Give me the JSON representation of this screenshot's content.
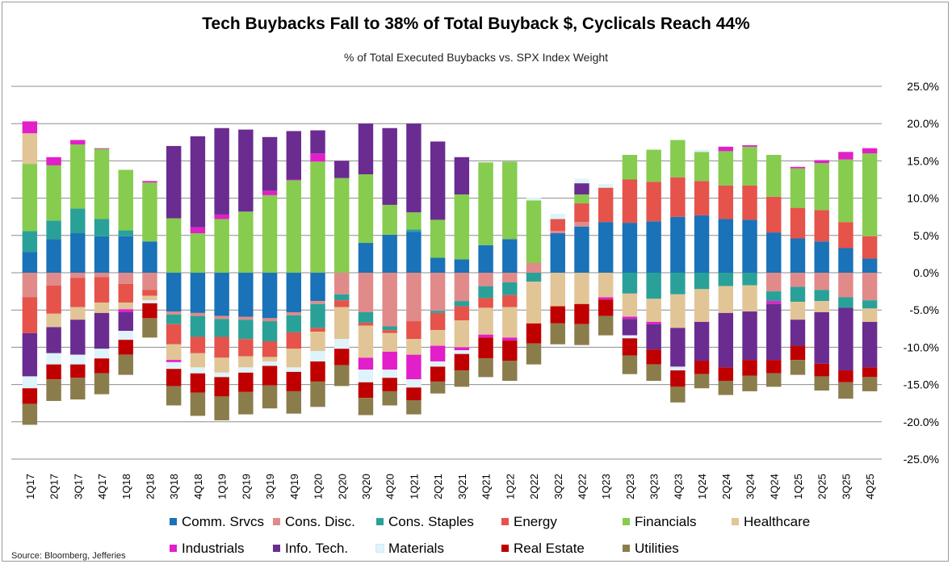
{
  "title": "Tech Buybacks Fall to 38% of Total Buyback $, Cyclicals Reach 44%",
  "subtitle": "% of Total Executed Buybacks vs. SPX Index Weight",
  "source": "Source: Bloomberg, Jefferies",
  "chart_data": {
    "type": "bar",
    "stacked": true,
    "diverging": true,
    "categories": [
      "1Q17",
      "2Q17",
      "3Q17",
      "4Q17",
      "1Q18",
      "2Q18",
      "3Q18",
      "4Q18",
      "1Q19",
      "2Q19",
      "3Q19",
      "4Q19",
      "1Q20",
      "2Q20",
      "3Q20",
      "4Q20",
      "1Q21",
      "2Q21",
      "3Q21",
      "4Q21",
      "1Q22",
      "2Q22",
      "3Q22",
      "4Q22",
      "1Q23",
      "2Q23",
      "3Q23",
      "4Q23",
      "1Q24",
      "2Q24",
      "3Q24",
      "4Q24",
      "1Q25",
      "2Q25",
      "3Q25",
      "4Q25"
    ],
    "ylim": [
      -25,
      25
    ],
    "yticks": [
      25,
      20,
      15,
      10,
      5,
      0,
      -5,
      -10,
      -15,
      -20,
      -25
    ],
    "ytick_labels": [
      "25.0%",
      "20.0%",
      "15.0%",
      "10.0%",
      "5.0%",
      "0.0%",
      "-5.0%",
      "-10.0%",
      "-15.0%",
      "-20.0%",
      "-25.0%"
    ],
    "grid": true,
    "legend_position": "bottom",
    "series": [
      {
        "name": "Comm. Srvcs",
        "color": "#1a72b8",
        "values": [
          2.8,
          4.5,
          5.3,
          4.9,
          4.9,
          4.2,
          -5.2,
          -5.4,
          -5.8,
          -5.9,
          -6.1,
          -5.3,
          -3.8,
          0,
          4.0,
          5.1,
          5.5,
          2.0,
          1.8,
          3.7,
          4.5,
          0,
          5.3,
          6.2,
          6.8,
          6.7,
          6.9,
          7.5,
          7.7,
          7.2,
          7.1,
          5.4,
          4.6,
          4.2,
          3.3,
          1.9
        ]
      },
      {
        "name": "Cons. Disc.",
        "color": "#e08a8a",
        "values": [
          -3.3,
          -1.7,
          -0.7,
          -0.6,
          -1.5,
          -2.3,
          -0.4,
          -0.4,
          -0.4,
          -0.4,
          -0.4,
          -0.4,
          -0.4,
          -2.9,
          -5.3,
          -7.2,
          -6.5,
          -5.1,
          -3.8,
          -1.8,
          -1.3,
          1.3,
          0.3,
          0.6,
          0,
          0,
          0,
          0,
          0,
          0,
          0,
          -2.5,
          -1.9,
          -2.3,
          -3.3,
          -3.7
        ]
      },
      {
        "name": "Cons. Staples",
        "color": "#2aa198",
        "values": [
          2.8,
          2.5,
          3.3,
          2.3,
          0.8,
          0,
          -1.3,
          -2.8,
          -2.4,
          -2.6,
          -2.7,
          -2.3,
          -3.2,
          -0.8,
          -1.4,
          -0.5,
          0.3,
          -0.3,
          -0.7,
          -1.6,
          -1.7,
          -1.2,
          0,
          0,
          0,
          -2.8,
          -3.5,
          -2.9,
          -2.2,
          -1.8,
          -1.7,
          -1.3,
          -2.0,
          -1.5,
          -1.4,
          -1.1
        ]
      },
      {
        "name": "Energy",
        "color": "#e5534b",
        "values": [
          -4.8,
          -3.8,
          -3.9,
          -3.4,
          -2.5,
          -0.8,
          -2.7,
          -2.2,
          -2.8,
          -2.3,
          -2.1,
          -2.2,
          -0.5,
          -0.9,
          -0.4,
          -0.4,
          -2.4,
          -2.3,
          -1.9,
          -1.3,
          -1.6,
          0,
          1.6,
          2.5,
          4.6,
          5.8,
          5.3,
          5.3,
          4.6,
          4.5,
          4.6,
          4.8,
          4.1,
          4.2,
          3.5,
          3.0
        ]
      },
      {
        "name": "Financials",
        "color": "#86cc4e",
        "values": [
          9.0,
          7.4,
          8.6,
          9.4,
          8.1,
          7.9,
          7.3,
          5.3,
          7.2,
          8.2,
          10.4,
          12.4,
          14.9,
          12.7,
          9.2,
          4.0,
          2.3,
          5.1,
          8.7,
          11.1,
          10.4,
          8.4,
          0,
          1.2,
          0,
          3.3,
          4.3,
          5.0,
          3.9,
          4.6,
          5.2,
          5.6,
          5.3,
          6.3,
          8.4,
          11.1
        ]
      },
      {
        "name": "Healthcare",
        "color": "#e2c596",
        "values": [
          4.1,
          -1.8,
          -1.7,
          -1.4,
          -0.9,
          -0.6,
          -2.1,
          -1.9,
          -2.0,
          -1.5,
          -0.6,
          -2.5,
          -2.6,
          -4.3,
          -4.3,
          -2.5,
          -2.1,
          -2.1,
          -3.6,
          -3.6,
          -4.1,
          -5.6,
          -4.5,
          -4.2,
          -3.3,
          -3.1,
          -3.1,
          -4.5,
          -4.4,
          -3.6,
          -3.5,
          0,
          -2.4,
          -1.5,
          0,
          -1.8
        ]
      },
      {
        "name": "Industrials",
        "color": "#e21fc8",
        "values": [
          1.6,
          1.1,
          0.6,
          0.1,
          -0.4,
          0.2,
          -0.3,
          0.8,
          0.6,
          0,
          0.6,
          0.1,
          1.1,
          0,
          -1.6,
          -2.4,
          -3.3,
          -2.1,
          -0.4,
          -0.4,
          -0.4,
          0,
          0,
          0,
          -0.3,
          -0.3,
          -0.3,
          0,
          0,
          0.6,
          0.2,
          -0.4,
          0.2,
          0.4,
          1.0,
          0.7
        ]
      },
      {
        "name": "Info. Tech.",
        "color": "#6a2c91",
        "values": [
          -5.8,
          -3.5,
          -4.7,
          -4.8,
          -2.5,
          0,
          9.7,
          12.2,
          11.6,
          11.0,
          7.2,
          6.5,
          3.1,
          2.3,
          6.8,
          10.3,
          11.9,
          10.5,
          5.0,
          0,
          0,
          0,
          0,
          1.5,
          0,
          -2.2,
          -3.4,
          -5.2,
          -5.2,
          -7.3,
          -6.5,
          -7.5,
          -3.5,
          -6.9,
          -8.4,
          -6.1
        ]
      },
      {
        "name": "Materials",
        "color": "#dff3fb",
        "values": [
          -1.6,
          -1.5,
          -1.3,
          -1.3,
          -1.2,
          -0.4,
          -0.9,
          -0.8,
          -0.6,
          -0.7,
          -0.6,
          -0.6,
          -1.4,
          -1.3,
          -1.7,
          -1.1,
          -1.1,
          -0.7,
          -0.5,
          0,
          0,
          0.4,
          0.7,
          0.6,
          0.5,
          -0.4,
          0,
          -0.5,
          0.3,
          0,
          0,
          0,
          0,
          0,
          0,
          0
        ]
      },
      {
        "name": "Real Estate",
        "color": "#c00000",
        "values": [
          -2.1,
          -2.0,
          -1.8,
          -2.0,
          -2.0,
          -2.0,
          -2.3,
          -2.6,
          -2.6,
          -2.6,
          -2.6,
          -2.6,
          -2.7,
          -2.2,
          -2.1,
          -1.8,
          -1.7,
          -2.0,
          -2.2,
          -2.8,
          -2.7,
          -2.7,
          -2.3,
          -2.7,
          -2.2,
          -2.3,
          -2.0,
          -2.2,
          -1.8,
          -1.8,
          -2.1,
          -1.8,
          -1.9,
          -1.7,
          -1.6,
          -1.3
        ]
      },
      {
        "name": "Utilities",
        "color": "#8b7d4b",
        "values": [
          -2.8,
          -2.9,
          -2.9,
          -2.8,
          -2.7,
          -2.6,
          -2.6,
          -3.1,
          -3.2,
          -3.0,
          -3.1,
          -3.0,
          -3.4,
          -2.8,
          -2.3,
          -1.9,
          -1.9,
          -1.6,
          -2.2,
          -2.5,
          -2.7,
          -2.8,
          -2.8,
          -2.8,
          -2.6,
          -2.5,
          -2.2,
          -2.1,
          -1.9,
          -1.9,
          -2.1,
          -1.8,
          -2.0,
          -1.9,
          -2.2,
          -1.9
        ]
      }
    ]
  }
}
